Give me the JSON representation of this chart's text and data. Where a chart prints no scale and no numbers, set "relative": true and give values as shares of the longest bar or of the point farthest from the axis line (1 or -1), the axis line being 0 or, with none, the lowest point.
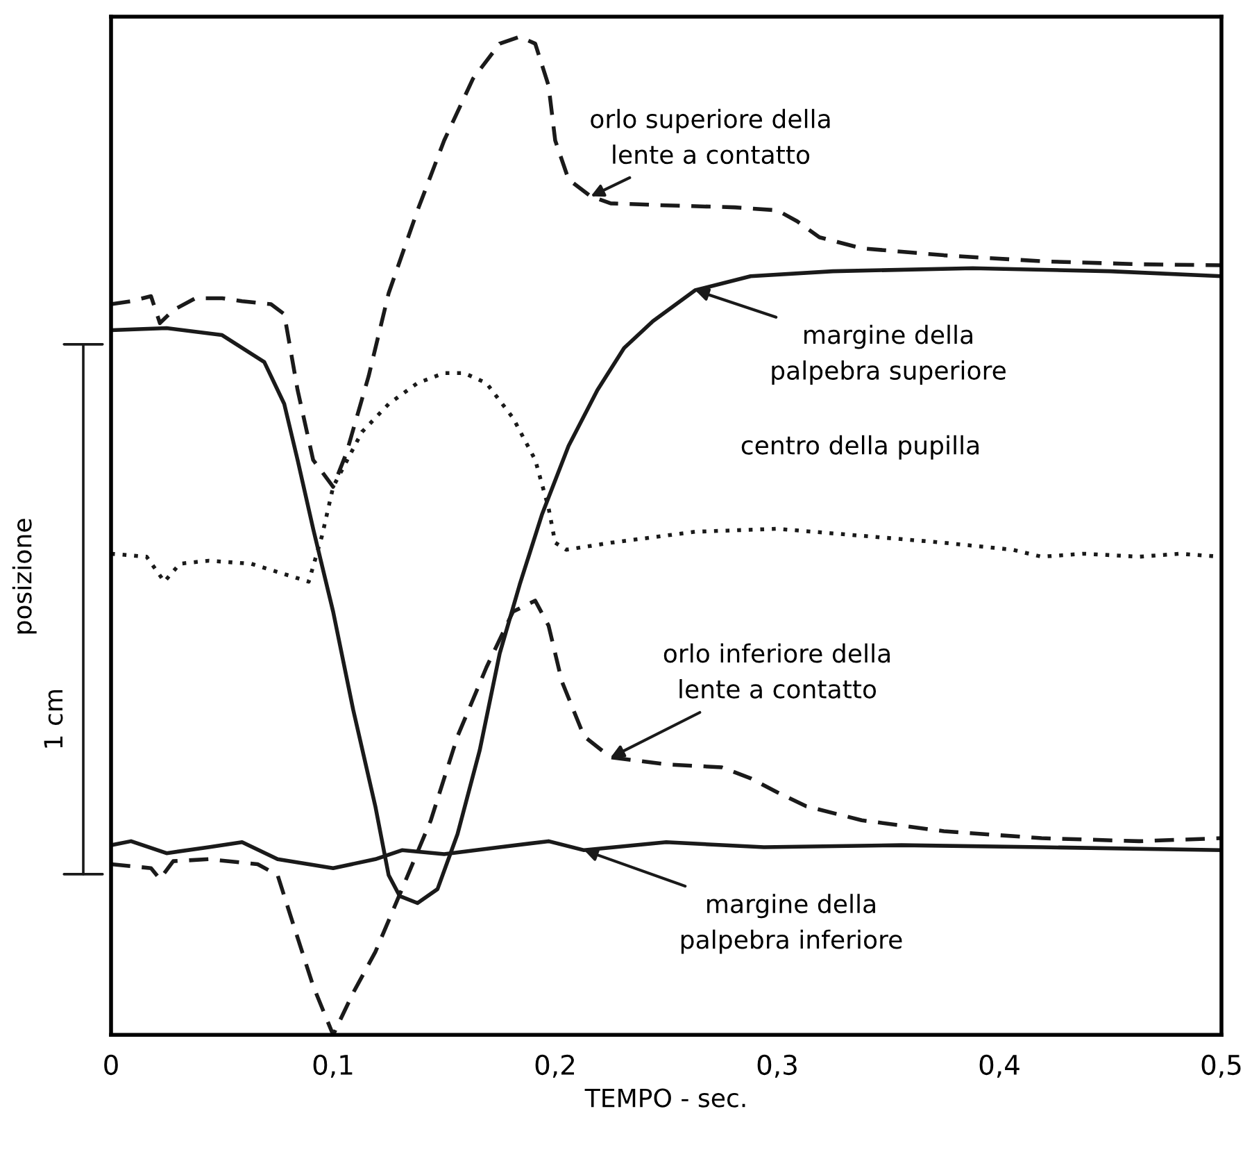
{
  "chart_data": {
    "type": "line",
    "relative": true,
    "xlabel": "TEMPO - sec.",
    "tick_labels": "x",
    "xlim": [
      0,
      0.5
    ],
    "xticks": [
      0,
      {
        "value": 0.1,
        "label": "0,1"
      },
      {
        "value": 0.2,
        "label": "0,2"
      },
      {
        "value": 0.3,
        "label": "0,3"
      },
      {
        "value": 0.4,
        "label": "0,4"
      },
      {
        "value": 0.5,
        "label": "0,5"
      }
    ],
    "grid": false,
    "legend": false,
    "series": [
      {
        "name": "orlo superiore della\nlente a contatto",
        "color": "#1a1a1a",
        "line_style": "dashed",
        "x": [
          0,
          0.009,
          0.018,
          0.022,
          0.028,
          0.038,
          0.05,
          0.059,
          0.072,
          0.078,
          0.084,
          0.091,
          0.1,
          0.106,
          0.116,
          0.125,
          0.138,
          0.15,
          0.163,
          0.175,
          0.184,
          0.191,
          0.197,
          0.2,
          0.206,
          0.216,
          0.225,
          0.25,
          0.281,
          0.3,
          0.309,
          0.319,
          0.338,
          0.375,
          0.419,
          0.463,
          0.5
        ],
        "values": [
          0.732,
          0.735,
          0.74,
          0.713,
          0.726,
          0.738,
          0.738,
          0.735,
          0.732,
          0.722,
          0.646,
          0.576,
          0.549,
          0.583,
          0.66,
          0.743,
          0.826,
          0.896,
          0.958,
          0.993,
          1.0,
          0.993,
          0.951,
          0.896,
          0.857,
          0.84,
          0.833,
          0.831,
          0.829,
          0.826,
          0.815,
          0.799,
          0.788,
          0.781,
          0.775,
          0.772,
          0.771
        ]
      },
      {
        "name": "margine della\npalpebra superiore",
        "color": "#1a1a1a",
        "line_style": "solid",
        "x": [
          0,
          0.025,
          0.05,
          0.069,
          0.078,
          0.084,
          0.091,
          0.1,
          0.109,
          0.119,
          0.125,
          0.13,
          0.138,
          0.147,
          0.156,
          0.166,
          0.175,
          0.184,
          0.194,
          0.206,
          0.219,
          0.231,
          0.244,
          0.263,
          0.288,
          0.325,
          0.388,
          0.45,
          0.5
        ],
        "values": [
          0.706,
          0.708,
          0.701,
          0.674,
          0.632,
          0.576,
          0.507,
          0.424,
          0.326,
          0.229,
          0.16,
          0.139,
          0.132,
          0.146,
          0.201,
          0.285,
          0.382,
          0.451,
          0.521,
          0.59,
          0.646,
          0.688,
          0.715,
          0.746,
          0.76,
          0.765,
          0.768,
          0.765,
          0.76
        ]
      },
      {
        "name": "centro della pupilla",
        "color": "#1a1a1a",
        "line_style": "dotted",
        "x": [
          0,
          0.016,
          0.024,
          0.031,
          0.044,
          0.063,
          0.089,
          0.095,
          0.1,
          0.113,
          0.125,
          0.138,
          0.15,
          0.159,
          0.169,
          0.181,
          0.191,
          0.197,
          0.2,
          0.205,
          0.225,
          0.263,
          0.3,
          0.338,
          0.375,
          0.406,
          0.419,
          0.438,
          0.463,
          0.481,
          0.5
        ],
        "values": [
          0.482,
          0.479,
          0.454,
          0.472,
          0.475,
          0.472,
          0.454,
          0.5,
          0.549,
          0.604,
          0.632,
          0.653,
          0.663,
          0.663,
          0.653,
          0.618,
          0.576,
          0.528,
          0.493,
          0.486,
          0.493,
          0.504,
          0.507,
          0.5,
          0.493,
          0.486,
          0.479,
          0.482,
          0.479,
          0.482,
          0.479
        ]
      },
      {
        "name": "orlo inferiore della\nlente a contatto",
        "color": "#1a1a1a",
        "line_style": "dashed",
        "x": [
          0,
          0.018,
          0.022,
          0.028,
          0.044,
          0.066,
          0.075,
          0.081,
          0.091,
          0.1,
          0.109,
          0.119,
          0.131,
          0.144,
          0.156,
          0.169,
          0.181,
          0.191,
          0.197,
          0.203,
          0.213,
          0.225,
          0.25,
          0.275,
          0.288,
          0.3,
          0.313,
          0.338,
          0.375,
          0.419,
          0.463,
          0.5
        ],
        "values": [
          0.171,
          0.167,
          0.156,
          0.174,
          0.176,
          0.171,
          0.16,
          0.118,
          0.049,
          0.0,
          0.042,
          0.083,
          0.146,
          0.215,
          0.299,
          0.368,
          0.424,
          0.435,
          0.41,
          0.354,
          0.299,
          0.278,
          0.271,
          0.268,
          0.257,
          0.243,
          0.229,
          0.215,
          0.204,
          0.197,
          0.194,
          0.197
        ]
      },
      {
        "name": "margine della\npalpebra inferiore",
        "color": "#1a1a1a",
        "line_style": "solid",
        "x": [
          0,
          0.009,
          0.025,
          0.044,
          0.059,
          0.075,
          0.1,
          0.119,
          0.131,
          0.15,
          0.175,
          0.197,
          0.213,
          0.25,
          0.294,
          0.356,
          0.419,
          0.5
        ],
        "values": [
          0.19,
          0.194,
          0.182,
          0.188,
          0.193,
          0.176,
          0.167,
          0.176,
          0.185,
          0.181,
          0.188,
          0.194,
          0.185,
          0.193,
          0.188,
          0.19,
          0.188,
          0.185
        ]
      }
    ],
    "annotations": [
      "posizione",
      "1 cm"
    ]
  }
}
